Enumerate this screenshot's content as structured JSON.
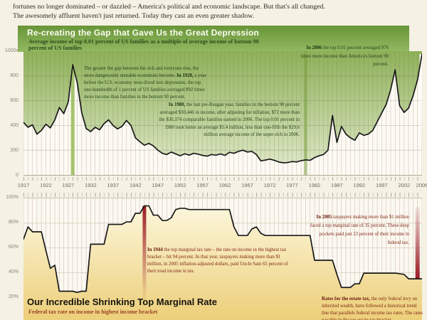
{
  "intro": {
    "line1": "fortunes no longer dominated – or dazzled – America's political and economic landscape. But that's all changed.",
    "line2": "The awesomely affluent haven't just returned. Today they cast an even greater shadow."
  },
  "colors": {
    "background": "#f5f1e4",
    "header_green_top": "#689638",
    "header_green_bottom": "#93b862",
    "gap_fill_top": "#8db158",
    "gap_fill_bottom": "#e3ecce",
    "marker_green": "#a6c36f",
    "marker_red": "#9c1b23",
    "yellow_fill_top": "#fdf9e2",
    "yellow_fill_bottom": "#ecce77",
    "line": "#191919",
    "annotation_green": "#25431a",
    "annotation_red": "#7e2413"
  },
  "chart_data": [
    {
      "id": "gap",
      "type": "area",
      "title": "Re-creating the Gap that Gave Us the Great Depression",
      "subtitle": "Average income of top 0.01 percent of US families as a multiple of average income of bottom 90 percent of US families",
      "x_range": [
        1917,
        2006
      ],
      "ylim": [
        0,
        1000
      ],
      "fill_side": "above",
      "fill": "green",
      "grid_over_fill": true,
      "grid_v_color": "rgba(140,110,90,0.32)",
      "grid_h_color": "rgba(90,90,70,0.28)",
      "h_gridlines": [
        200,
        400,
        600,
        800
      ],
      "y_tick_labels": [
        {
          "label": "1000x",
          "value": 1000
        },
        {
          "label": "800",
          "value": 800
        },
        {
          "label": "600",
          "value": 600
        },
        {
          "label": "400",
          "value": 400
        },
        {
          "label": "200",
          "value": 200
        },
        {
          "label": "0",
          "value": 0
        }
      ],
      "x_tick_labels": [
        1917,
        1922,
        1927,
        1932,
        1937,
        1942,
        1947,
        1952,
        1957,
        1962,
        1967,
        1972,
        1977,
        1982,
        1987,
        1992,
        1997,
        2002,
        2006
      ],
      "values": [
        425,
        385,
        405,
        330,
        360,
        410,
        380,
        445,
        545,
        495,
        590,
        892,
        745,
        505,
        375,
        350,
        385,
        365,
        415,
        445,
        400,
        372,
        392,
        440,
        400,
        300,
        268,
        240,
        255,
        235,
        200,
        175,
        165,
        185,
        170,
        155,
        171,
        160,
        175,
        168,
        158,
        152,
        165,
        160,
        170,
        158,
        183,
        175,
        190,
        200,
        185,
        190,
        165,
        114,
        120,
        128,
        118,
        105,
        98,
        100,
        108,
        105,
        115,
        122,
        118,
        140,
        155,
        165,
        200,
        481,
        262,
        392,
        330,
        300,
        280,
        340,
        320,
        330,
        360,
        430,
        500,
        570,
        690,
        850,
        560,
        505,
        540,
        640,
        770,
        976
      ],
      "markers": [
        {
          "year": 1928,
          "w": 5,
          "from": 892,
          "to": 0,
          "paint": "solid-green"
        },
        {
          "year": 1980,
          "w": 5,
          "from": 1000,
          "to": 0,
          "paint": "trans-green"
        },
        {
          "year": 2006,
          "w": 7,
          "from": 976,
          "to": 0,
          "paint": "white-fade"
        }
      ],
      "annotations": {
        "a1928": {
          "pre": "The greater the gap between the rich and everyone else, the more dangerously unstable economies become. ",
          "lead": "In 1928,",
          "rest": " a year before the U.S. economy nose-dived into depression, the top one-hundredth of 1 percent of US families averaged 892 times more income than families in the bottom 90 percent."
        },
        "a1980": {
          "pre": "",
          "lead": "In 1980,",
          "rest": " the last pre-Reagan year, families in the bottom 90 percent averaged $30,446 in income, after adjusting for inflation, $72 more than the $30,374 comparable families earned in 2006. The top 0.01 percent in 1980 took home an average $5.4 million, less than one-fifth the $29.6 million average income of the super-rich in 2006."
        },
        "a2006": {
          "pre": "",
          "lead": "In 2006",
          "rest": " the top 0.01 percent averaged 976 times more income than America's bottom 90 percent."
        }
      }
    },
    {
      "id": "tax",
      "type": "area",
      "title": "Our Incredible Shrinking Top Marginal Rate",
      "subtitle": "Federal tax rate on income in highest income bracket",
      "x_range": [
        1917,
        2006
      ],
      "ylim": [
        0,
        100
      ],
      "fill_side": "below",
      "fill": "yellow",
      "grid_over_fill": false,
      "grid_v_color": "#dcc6bd",
      "grid_h_color": "#d5cdb9",
      "h_gridlines": [
        20,
        40,
        60,
        80
      ],
      "y_tick_labels": [
        {
          "label": "100%",
          "value": 100
        },
        {
          "label": "80%",
          "value": 80
        },
        {
          "label": "60%",
          "value": 60
        },
        {
          "label": "40%",
          "value": 40
        },
        {
          "label": "20%",
          "value": 20
        }
      ],
      "x_tick_labels": [],
      "values": [
        67,
        77,
        73,
        73,
        73,
        58,
        43.5,
        46,
        25,
        25,
        25,
        25,
        24,
        25,
        25,
        63,
        63,
        63,
        63,
        79,
        79,
        79,
        79,
        81,
        81,
        88,
        88,
        94,
        94,
        86.45,
        86.45,
        82.13,
        82.13,
        84.36,
        91,
        92,
        92,
        91,
        91,
        91,
        91,
        91,
        91,
        91,
        91,
        91,
        91,
        77,
        70,
        70,
        70,
        75.25,
        77,
        71.75,
        70,
        70,
        70,
        70,
        70,
        70,
        70,
        70,
        70,
        70,
        70,
        50,
        50,
        50,
        50,
        50,
        38.5,
        28,
        28,
        28,
        31,
        31,
        39.6,
        39.6,
        39.6,
        39.6,
        39.6,
        39.6,
        39.6,
        39.6,
        39.1,
        38.6,
        35,
        35,
        35,
        35
      ],
      "markers": [
        {
          "year": 1944,
          "w": 5,
          "from": 94,
          "to": 8,
          "paint": "red-out"
        },
        {
          "year": 2005,
          "w": 6,
          "from": 93,
          "to": 35,
          "paint": "red-in"
        }
      ],
      "annotations": {
        "a1944": {
          "pre": "",
          "lead": "In 1944",
          "rest": " the top marginal tax rate – the rate on income in the highest tax bracket – hit 94 percent. In that year, taxpayers making more than $1 million, in 2005 inflation-adjusted dollars, paid Uncle Sam 65 percent of their total income in tax."
        },
        "a2005": {
          "pre": "",
          "lead": "In 2005",
          "rest": " taxpayers making more than $1 million faced a top marginal rate of 35 percent. These deep pockets paid just 23 percent of their income in federal tax."
        },
        "estate": {
          "pre": "",
          "lead": "Rates for the estate tax,",
          "rest": " the only federal levy on inherited wealth, have followed a historical trend line that parallels federal income tax rates. The rates payable in the top estate tax bracket"
        }
      }
    }
  ]
}
